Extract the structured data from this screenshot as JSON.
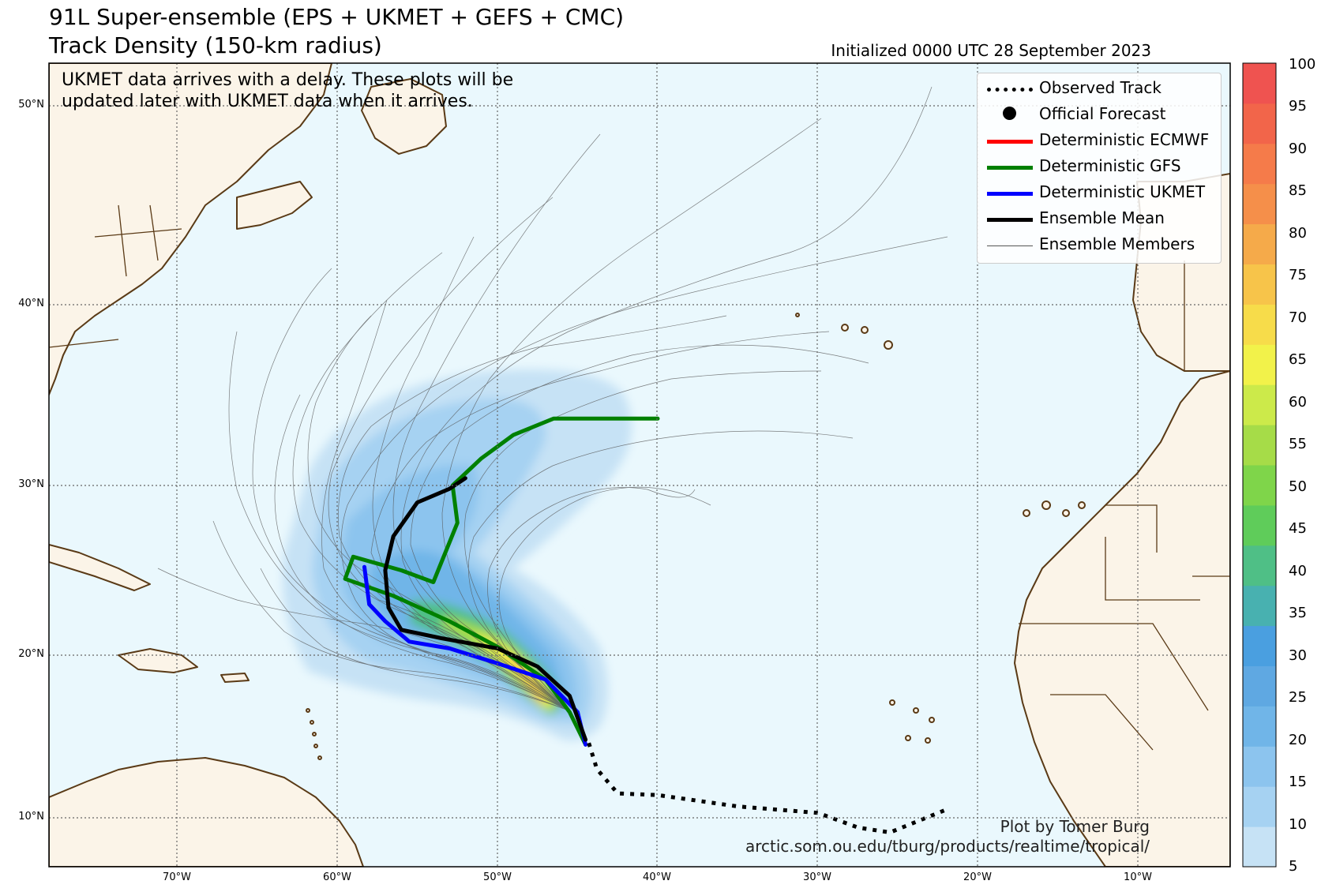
{
  "header": {
    "title_line1": "91L Super-ensemble (EPS + UKMET + GEFS + CMC)",
    "title_line2": "Track Density (150-km radius)",
    "initialized": "Initialized 0000 UTC 28 September 2023"
  },
  "note": "UKMET data arrives with a delay. These plots will be\nupdated later with UKMET data when it arrives.",
  "credit": {
    "line1": "Plot by Tomer Burg",
    "line2": "arctic.som.ou.edu/tburg/products/realtime/tropical/"
  },
  "legend": [
    {
      "label": "Observed Track",
      "style": "dotted",
      "color": "#000000"
    },
    {
      "label": "Official Forecast",
      "style": "dot",
      "color": "#000000"
    },
    {
      "label": "Deterministic ECMWF",
      "style": "line",
      "color": "#ff0000"
    },
    {
      "label": "Deterministic GFS",
      "style": "line",
      "color": "#008000"
    },
    {
      "label": "Deterministic UKMET",
      "style": "line",
      "color": "#0000ff"
    },
    {
      "label": "Ensemble Mean",
      "style": "line",
      "color": "#000000"
    },
    {
      "label": "Ensemble Members",
      "style": "thin",
      "color": "#555555"
    }
  ],
  "axes": {
    "lat_labels": [
      "10°N",
      "20°N",
      "30°N",
      "40°N",
      "50°N"
    ],
    "lon_labels": [
      "70°W",
      "60°W",
      "50°W",
      "40°W",
      "30°W",
      "20°W",
      "10°W"
    ]
  },
  "colorbar": {
    "labels": [
      "5",
      "10",
      "15",
      "20",
      "25",
      "30",
      "35",
      "40",
      "45",
      "50",
      "55",
      "60",
      "65",
      "70",
      "75",
      "80",
      "85",
      "90",
      "95",
      "100"
    ],
    "colors": [
      "#c6e2f5",
      "#a6d2f2",
      "#8cc4ee",
      "#70b5e8",
      "#5fa8e2",
      "#4a9fe0",
      "#48b1b0",
      "#4fbf86",
      "#5fcc5a",
      "#7fd54a",
      "#a6dc48",
      "#ccea4a",
      "#f2f24a",
      "#f7dc4a",
      "#f7c44a",
      "#f5aa4a",
      "#f58f4a",
      "#f57b4a",
      "#f2654a",
      "#ef5350"
    ]
  },
  "chart_data": {
    "type": "map",
    "projection": "equirectangular",
    "extent": {
      "lon": [
        -78,
        -4
      ],
      "lat": [
        7.5,
        52.5
      ]
    },
    "ocean_color": "#eaf8fd",
    "land_color": "#fbf4e8",
    "coast_color": "#5a3a16",
    "observed_track": [
      [
        -44.3,
        14.6
      ],
      [
        -43.8,
        13.0
      ],
      [
        -42.5,
        11.5
      ],
      [
        -40.0,
        11.4
      ],
      [
        -35.0,
        10.7
      ],
      [
        -30.0,
        10.3
      ],
      [
        -27.5,
        9.4
      ],
      [
        -25.5,
        9.1
      ],
      [
        -22.0,
        10.5
      ]
    ],
    "official_forecast": [],
    "deterministic_ecmwf": [],
    "deterministic_gfs": [
      [
        -44.5,
        14.5
      ],
      [
        -45.5,
        16.5
      ],
      [
        -47.0,
        18.5
      ],
      [
        -50.0,
        20.5
      ],
      [
        -53.0,
        22.0
      ],
      [
        -56.5,
        23.5
      ],
      [
        -59.5,
        24.5
      ],
      [
        -59.0,
        25.8
      ],
      [
        -56.0,
        25.0
      ],
      [
        -54.0,
        24.3
      ],
      [
        -52.5,
        27.8
      ],
      [
        -52.8,
        30.0
      ],
      [
        -51.0,
        31.5
      ],
      [
        -49.0,
        32.8
      ],
      [
        -46.5,
        33.7
      ],
      [
        -40.0,
        33.7
      ]
    ],
    "deterministic_ukmet": [
      [
        -44.5,
        14.5
      ],
      [
        -45.0,
        16.5
      ],
      [
        -47.0,
        18.5
      ],
      [
        -50.0,
        19.5
      ],
      [
        -53.0,
        20.4
      ],
      [
        -55.5,
        20.8
      ],
      [
        -57.0,
        22.0
      ],
      [
        -58.0,
        23.0
      ],
      [
        -58.3,
        25.2
      ]
    ],
    "ensemble_mean": [
      [
        -44.5,
        14.8
      ],
      [
        -45.5,
        17.5
      ],
      [
        -47.5,
        19.3
      ],
      [
        -50.0,
        20.4
      ],
      [
        -53.5,
        21.0
      ],
      [
        -56.0,
        21.5
      ],
      [
        -56.8,
        22.8
      ],
      [
        -57.0,
        25.0
      ],
      [
        -56.5,
        27.0
      ],
      [
        -55.0,
        29.0
      ],
      [
        -53.0,
        29.8
      ],
      [
        -52.0,
        30.4
      ]
    ],
    "density_levels": [
      5,
      10,
      15,
      20,
      25,
      30,
      35,
      40,
      45,
      50,
      55,
      60,
      65,
      70,
      75,
      80,
      85,
      90,
      95,
      100
    ]
  }
}
